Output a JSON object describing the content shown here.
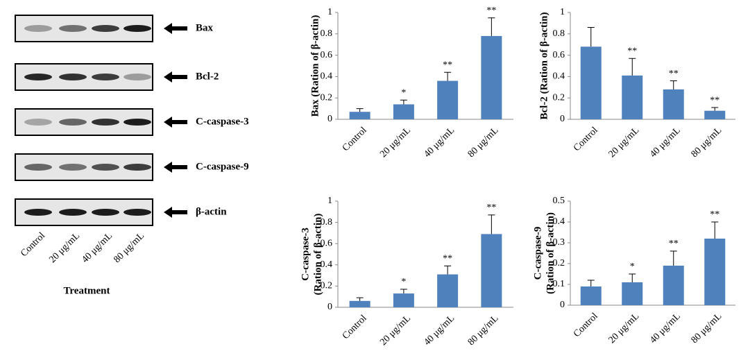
{
  "blot": {
    "proteins": [
      "Bax",
      "Bcl-2",
      "C-caspase-3",
      "C-caspase-9",
      "β-actin"
    ],
    "lanes": [
      "Control",
      "20 μg/mL",
      "40 μg/mL",
      "80 μg/mL"
    ],
    "xlabel": "Treatment"
  },
  "chart_data": [
    {
      "type": "bar",
      "ylabel": [
        "Bax (Ration of β-actin)"
      ],
      "categories": [
        "Control",
        "20 μg/mL",
        "40 μg/mL",
        "80 μg/mL"
      ],
      "values": [
        0.07,
        0.14,
        0.36,
        0.78
      ],
      "errors": [
        0.03,
        0.04,
        0.08,
        0.17
      ],
      "annotations": [
        null,
        "*",
        "**",
        "**"
      ],
      "color": "#4f81bd",
      "ylim": [
        0,
        1
      ],
      "yticks": [
        0,
        0.2,
        0.4,
        0.6,
        0.8,
        1
      ]
    },
    {
      "type": "bar",
      "ylabel": [
        "Bcl-2 (Ration of β-actin)"
      ],
      "categories": [
        "Control",
        "20 μg/mL",
        "40 μg/mL",
        "80 μg/mL"
      ],
      "values": [
        0.68,
        0.41,
        0.28,
        0.08
      ],
      "errors": [
        0.18,
        0.16,
        0.08,
        0.03
      ],
      "annotations": [
        null,
        "**",
        "**",
        "**"
      ],
      "color": "#4f81bd",
      "ylim": [
        0,
        1
      ],
      "yticks": [
        0,
        0.2,
        0.4,
        0.6,
        0.8,
        1
      ]
    },
    {
      "type": "bar",
      "ylabel": [
        "C-caspase-3",
        "(Ration of β-actin)"
      ],
      "categories": [
        "Control",
        "20 μg/mL",
        "40 μg/mL",
        "80 μg/mL"
      ],
      "values": [
        0.06,
        0.13,
        0.31,
        0.69
      ],
      "errors": [
        0.03,
        0.04,
        0.08,
        0.18
      ],
      "annotations": [
        null,
        "*",
        "**",
        "**"
      ],
      "color": "#4f81bd",
      "ylim": [
        0,
        1
      ],
      "yticks": [
        0,
        0.2,
        0.4,
        0.6,
        0.8,
        1
      ]
    },
    {
      "type": "bar",
      "ylabel": [
        "C-caspase-9",
        "(Ration of β-actin)"
      ],
      "categories": [
        "Control",
        "20 μg/mL",
        "40 μg/mL",
        "80 μg/mL"
      ],
      "values": [
        0.09,
        0.11,
        0.19,
        0.32
      ],
      "errors": [
        0.03,
        0.04,
        0.07,
        0.08
      ],
      "annotations": [
        null,
        "*",
        "**",
        "**"
      ],
      "color": "#4f81bd",
      "ylim": [
        0,
        0.5
      ],
      "yticks": [
        0,
        0.1,
        0.2,
        0.3,
        0.4,
        0.5
      ]
    }
  ]
}
